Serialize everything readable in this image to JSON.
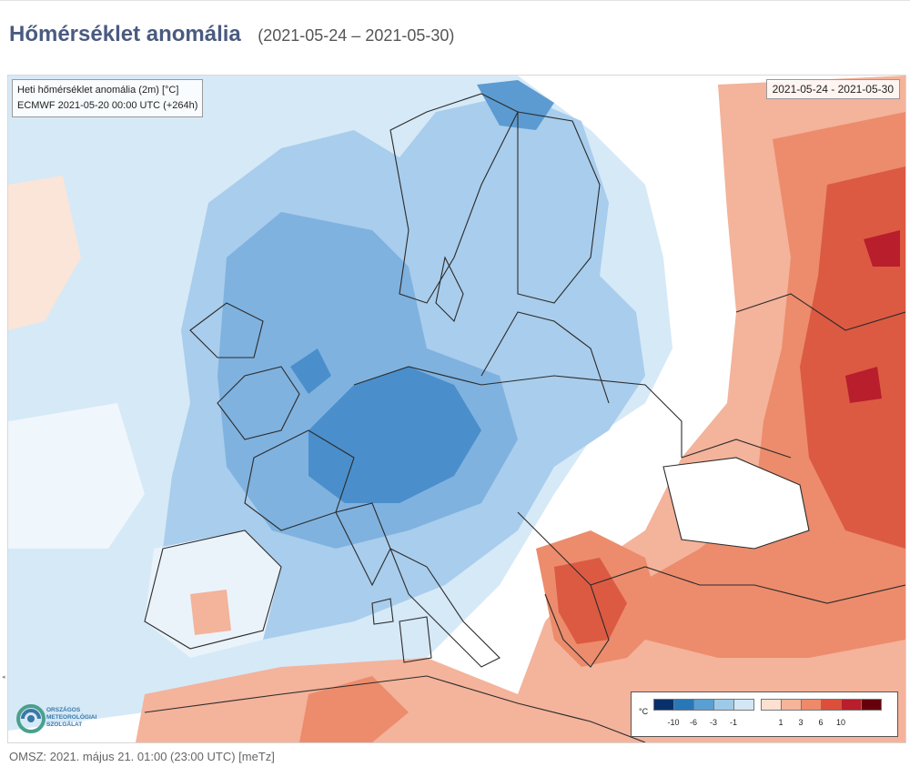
{
  "header": {
    "title": "Hőmérséklet anomália",
    "period": "(2021-05-24 – 2021-05-30)"
  },
  "map": {
    "info_line1": "Heti hőmérséklet anomália (2m) [°C]",
    "info_line2": "ECMWF 2021-05-20 00:00 UTC (+264h)",
    "date_range": "2021-05-24 - 2021-05-30",
    "logo_text": [
      "ORSZÁGOS",
      "METEOROLÓGIAI",
      "SZOLGÁLAT"
    ]
  },
  "legend": {
    "unit": "°C",
    "cold": [
      {
        "color": "#08306b"
      },
      {
        "color": "#2878b8"
      },
      {
        "color": "#5a9fd4"
      },
      {
        "color": "#9ecae9"
      },
      {
        "color": "#d2e6f5"
      }
    ],
    "warm": [
      {
        "color": "#fde0d0"
      },
      {
        "color": "#f6b49a"
      },
      {
        "color": "#ee8a6a"
      },
      {
        "color": "#dc4f3a"
      },
      {
        "color": "#b81e2c"
      },
      {
        "color": "#67000d"
      }
    ],
    "cold_ticks": [
      "-10",
      "-6",
      "-3",
      "-1"
    ],
    "warm_ticks": [
      "1",
      "3",
      "6",
      "10"
    ]
  },
  "footer": {
    "text": "OMSZ: 2021. május 21. 01:00 (23:00  UTC)  [meTz]"
  }
}
